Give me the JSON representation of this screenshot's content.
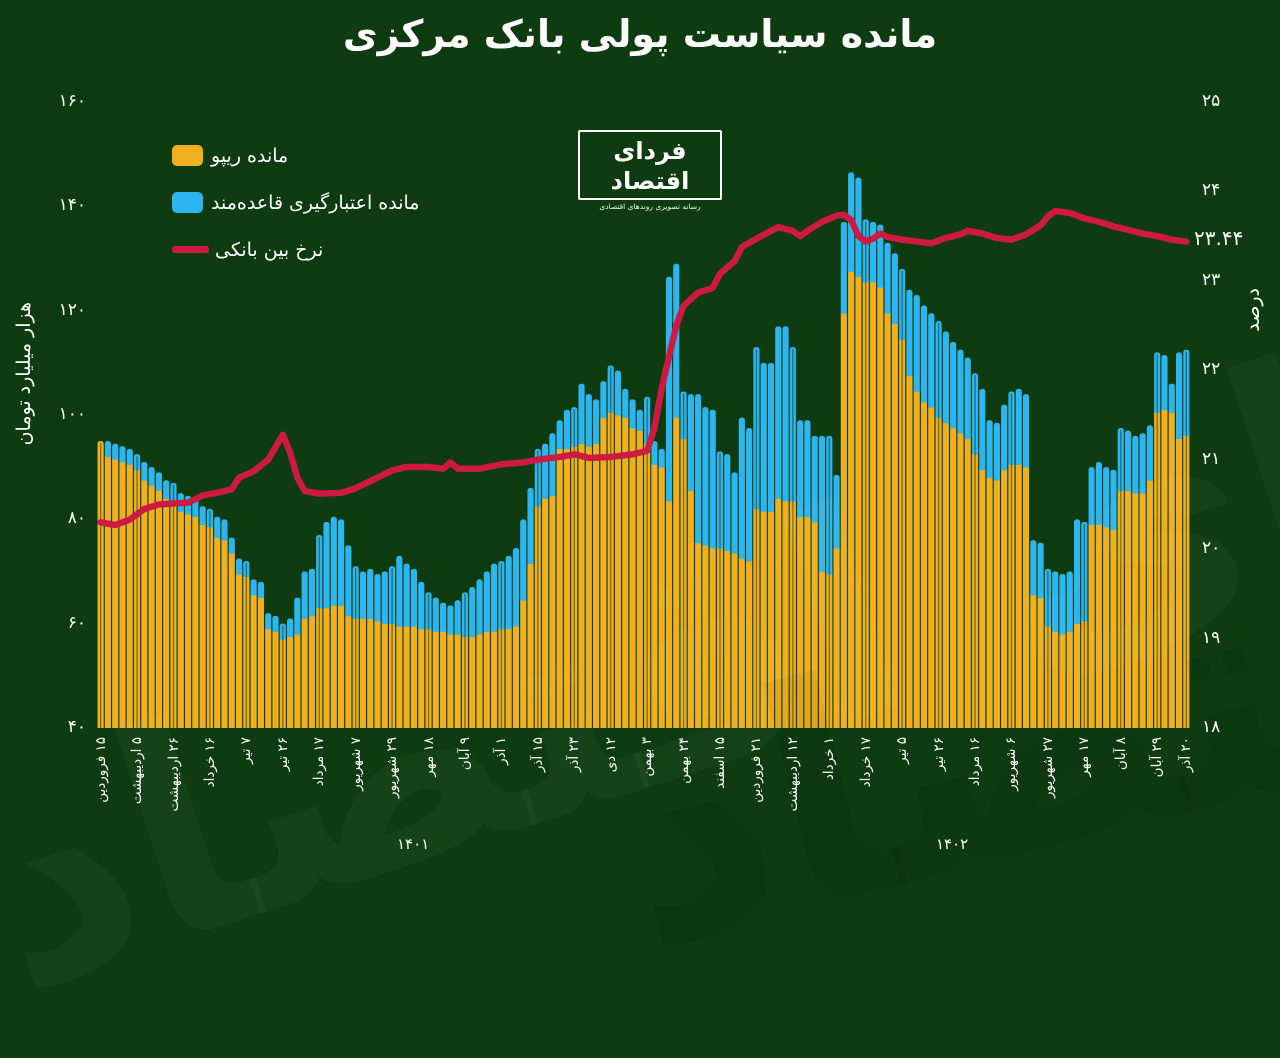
{
  "title": "مانده سیاست پولی بانک مرکزی",
  "legend": {
    "items": [
      {
        "label": "مانده ریپو",
        "swatch": "bar",
        "color": "#F0AF1E"
      },
      {
        "label": "مانده اعتبارگیری قاعده‌مند",
        "swatch": "bar",
        "color": "#2DB5EF"
      },
      {
        "label": "نرخ بین بانکی",
        "swatch": "line",
        "color": "#CE1A43"
      }
    ]
  },
  "logo": {
    "name": "فردای اقتصاد",
    "tagline": "رسانه تصویری روندهای اقتصادی"
  },
  "annotation": {
    "text": "۲۳.۴۴",
    "value": 23.44
  },
  "axes": {
    "left": {
      "title": "هزار میلیارد تومان",
      "ticks": [
        {
          "label": "۱۶۰",
          "value": 160
        },
        {
          "label": "۱۴۰",
          "value": 140
        },
        {
          "label": "۱۲۰",
          "value": 120
        },
        {
          "label": "۱۰۰",
          "value": 100
        },
        {
          "label": "۸۰",
          "value": 80
        },
        {
          "label": "۶۰",
          "value": 60
        },
        {
          "label": "۴۰",
          "value": 40
        }
      ]
    },
    "right": {
      "title": "درصد",
      "ticks": [
        {
          "label": "۲۵",
          "value": 25
        },
        {
          "label": "۲۴",
          "value": 24
        },
        {
          "label": "۲۳",
          "value": 23
        },
        {
          "label": "۲۲",
          "value": 22
        },
        {
          "label": "۲۱",
          "value": 21
        },
        {
          "label": "۲۰",
          "value": 20
        },
        {
          "label": "۱۹",
          "value": 19
        },
        {
          "label": "۱۸",
          "value": 18
        }
      ]
    },
    "x": {
      "year_labels": [
        "۱۴۰۱",
        "۱۴۰۲"
      ]
    }
  },
  "colors": {
    "background": "#0E3B10",
    "bar_repo": "#F0AF1E",
    "bar_credit": "#2DB5EF",
    "rate_line": "#CE1A43",
    "text": "#FFFFFF",
    "gridline": "rgba(10,42,12,0.5)"
  },
  "chart_data": {
    "type": "bar+line",
    "title": "مانده سیاست پولی بانک مرکزی",
    "ylabel_left": "هزار میلیارد تومان",
    "ylabel_right": "درصد",
    "ylim_left": [
      40,
      160
    ],
    "ylim_right": [
      18,
      25
    ],
    "bars_per_tick": 5,
    "x_tick_labels": [
      "۱۵ فروردین",
      "۵ اردیبهشت",
      "۲۶ اردیبهشت",
      "۱۶ خرداد",
      "۷ تیر",
      "۲۶ تیر",
      "۱۷ مرداد",
      "۷ شهریور",
      "۲۹ شهریور",
      "۱۸ مهر",
      "۹ آبان",
      "۱ آذر",
      "۱۵ آذر",
      "۲۳ آذر",
      "۱۲ دی",
      "۳ بهمن",
      "۲۴ بهمن",
      "۱۵ اسفند",
      "۲۱ فروردین",
      "۱۲ اردیبهشت",
      "۱ خرداد",
      "۱۷ خرداد",
      "۵ تیر",
      "۲۶ تیر",
      "۱۶ مرداد",
      "۶ شهریور",
      "۲۷ شهریور",
      "۱۷ مهر",
      "۸ آبان",
      "۲۹ آبان",
      "۲۰ آذر"
    ],
    "series": [
      {
        "name": "مانده ریپو",
        "type": "bar",
        "stack": true,
        "color": "#F0AF1E",
        "values": [
          95,
          92.5,
          92,
          91.5,
          91,
          90,
          88,
          87,
          86,
          84.5,
          84,
          82,
          81.5,
          81,
          79.5,
          79,
          77,
          76.5,
          74,
          70,
          69.5,
          66,
          65.5,
          59.5,
          59,
          57.5,
          58,
          58.5,
          61.5,
          62,
          63.5,
          63.5,
          64,
          64,
          62,
          61.5,
          61.5,
          61.5,
          61,
          60.5,
          60.5,
          60,
          60,
          60,
          59.5,
          59.5,
          59,
          59,
          58.5,
          58.5,
          58,
          58,
          58.5,
          59,
          59,
          59.5,
          59.5,
          60,
          65,
          72,
          83,
          84.5,
          85,
          94,
          94,
          94.5,
          95,
          94.5,
          95,
          100,
          101,
          100.5,
          100,
          98,
          97.5,
          95,
          91,
          90.5,
          84,
          100,
          96,
          86,
          76,
          75.5,
          75,
          75,
          74.5,
          74,
          73,
          72.5,
          82.5,
          82,
          82,
          84.5,
          84,
          84,
          81,
          81,
          80,
          70.5,
          70,
          75,
          120,
          128,
          127,
          126,
          126,
          125,
          120,
          118,
          115,
          108,
          105,
          103,
          102,
          100,
          99,
          98,
          97,
          96,
          93,
          90,
          88.5,
          88,
          90,
          91,
          91,
          90.5,
          66,
          65.5,
          60,
          59,
          58.5,
          59,
          60.5,
          61,
          79.5,
          79.5,
          79,
          78.5,
          86,
          86,
          85.5,
          85.5,
          88,
          101,
          101.5,
          101,
          96,
          96.5
        ]
      },
      {
        "name": "مانده اعتبارگیری قاعده‌مند",
        "type": "bar",
        "stack": true,
        "color": "#2DB5EF",
        "values": [
          0,
          2.5,
          2.5,
          2.5,
          2.5,
          2.5,
          3,
          3,
          3,
          3,
          3,
          3,
          3,
          3,
          3,
          3,
          3.5,
          3.5,
          2.5,
          2.5,
          2.5,
          2.5,
          2.5,
          2.5,
          2.5,
          2.5,
          3,
          6.5,
          8.5,
          8.5,
          13.5,
          16,
          16.5,
          16,
          13,
          9.5,
          8.5,
          9,
          8.5,
          9.5,
          10.5,
          13,
          11.5,
          10.5,
          8.5,
          6.5,
          6,
          5,
          5,
          6,
          8,
          9,
          10,
          11,
          12.5,
          12.5,
          13.5,
          14.5,
          15,
          14,
          10.5,
          10,
          11.5,
          5,
          7,
          7,
          11,
          9.5,
          8,
          6.5,
          8.5,
          8,
          5,
          5,
          3.5,
          8.5,
          4,
          3,
          42.5,
          29,
          8.5,
          18,
          28,
          26,
          26,
          18,
          18,
          15,
          26.5,
          25,
          30.5,
          28,
          28,
          32.5,
          33,
          29,
          18,
          18,
          16,
          25.5,
          26,
          13.5,
          17,
          18.5,
          18.5,
          11.5,
          11,
          11.5,
          13,
          13,
          13,
          16,
          18,
          18,
          17.5,
          18,
          17,
          16,
          15.5,
          15,
          15,
          15,
          10.5,
          10.5,
          12,
          13.5,
          14,
          13.5,
          10,
          10,
          10.5,
          11,
          11,
          11,
          19.5,
          18.5,
          10.5,
          11.5,
          11,
          11,
          11.5,
          11,
          10.5,
          11,
          10,
          11,
          10,
          5,
          16,
          16
        ]
      },
      {
        "name": "نرخ بین بانکی",
        "type": "line",
        "axis": "right",
        "color": "#CE1A43",
        "keypoints": [
          [
            0,
            20.3
          ],
          [
            2,
            20.27
          ],
          [
            4,
            20.33
          ],
          [
            6,
            20.45
          ],
          [
            8,
            20.5
          ],
          [
            12,
            20.52
          ],
          [
            14,
            20.6
          ],
          [
            16,
            20.63
          ],
          [
            18,
            20.67
          ],
          [
            19,
            20.8
          ],
          [
            21,
            20.87
          ],
          [
            23,
            21.0
          ],
          [
            25,
            21.28
          ],
          [
            26,
            21.08
          ],
          [
            27,
            20.8
          ],
          [
            28,
            20.65
          ],
          [
            30,
            20.62
          ],
          [
            33,
            20.63
          ],
          [
            35,
            20.68
          ],
          [
            38,
            20.8
          ],
          [
            40,
            20.88
          ],
          [
            42,
            20.92
          ],
          [
            45,
            20.92
          ],
          [
            47,
            20.9
          ],
          [
            48,
            20.97
          ],
          [
            49,
            20.9
          ],
          [
            52,
            20.9
          ],
          [
            55,
            20.95
          ],
          [
            58,
            20.97
          ],
          [
            60,
            21.0
          ],
          [
            63,
            21.03
          ],
          [
            65,
            21.06
          ],
          [
            67,
            21.02
          ],
          [
            70,
            21.03
          ],
          [
            73,
            21.06
          ],
          [
            75,
            21.1
          ],
          [
            76,
            21.35
          ],
          [
            77,
            21.8
          ],
          [
            78,
            22.15
          ],
          [
            79,
            22.5
          ],
          [
            80,
            22.72
          ],
          [
            82,
            22.87
          ],
          [
            84,
            22.92
          ],
          [
            85,
            23.08
          ],
          [
            87,
            23.22
          ],
          [
            88,
            23.38
          ],
          [
            90,
            23.47
          ],
          [
            92,
            23.56
          ],
          [
            93,
            23.6
          ],
          [
            95,
            23.56
          ],
          [
            96,
            23.5
          ],
          [
            97,
            23.56
          ],
          [
            99,
            23.66
          ],
          [
            101,
            23.73
          ],
          [
            102,
            23.74
          ],
          [
            103,
            23.68
          ],
          [
            104,
            23.5
          ],
          [
            105,
            23.44
          ],
          [
            106,
            23.47
          ],
          [
            107,
            23.53
          ],
          [
            108,
            23.49
          ],
          [
            110,
            23.46
          ],
          [
            112,
            23.44
          ],
          [
            114,
            23.42
          ],
          [
            116,
            23.48
          ],
          [
            118,
            23.52
          ],
          [
            119,
            23.56
          ],
          [
            121,
            23.53
          ],
          [
            123,
            23.48
          ],
          [
            125,
            23.46
          ],
          [
            127,
            23.52
          ],
          [
            129,
            23.62
          ],
          [
            130,
            23.72
          ],
          [
            131,
            23.78
          ],
          [
            133,
            23.76
          ],
          [
            135,
            23.7
          ],
          [
            137,
            23.66
          ],
          [
            139,
            23.61
          ],
          [
            141,
            23.57
          ],
          [
            143,
            23.53
          ],
          [
            145,
            23.5
          ],
          [
            147,
            23.46
          ],
          [
            149,
            23.44
          ]
        ]
      }
    ]
  }
}
